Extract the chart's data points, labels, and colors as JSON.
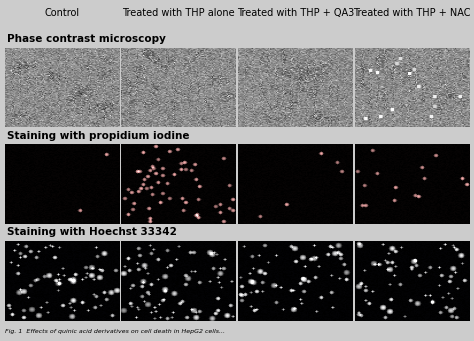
{
  "col_labels": [
    "Control",
    "Treated with THP alone",
    "Treated with THP + QA3",
    "Treated with THP + NAC"
  ],
  "row_labels": [
    "Phase contrast microscopy",
    "Staining with propidium iodine",
    "Staining with Hoechst 33342"
  ],
  "col_label_fontsize": 7,
  "row_label_fontsize": 7.5,
  "fig_bg": "#d0d0d0",
  "rows": 3,
  "cols": 4,
  "caption": "Fig. 1  Effects of quinic acid derivatives on cell death in HepG2...",
  "caption_fontsize": 5,
  "row_configs": [
    {
      "bg": "#c0c0c0",
      "noise_type": "phase_contrast"
    },
    {
      "bg": "#111111",
      "noise_type": "propidium"
    },
    {
      "bg": "#111111",
      "noise_type": "hoechst"
    }
  ],
  "phase_contrast_colors": [
    "#b0b0b0",
    "#a0a0a0",
    "#999999",
    "#aaaaaa"
  ],
  "propidium_dot_counts": [
    2,
    60,
    5,
    15
  ],
  "hoechst_dot_counts": [
    80,
    90,
    70,
    75
  ]
}
